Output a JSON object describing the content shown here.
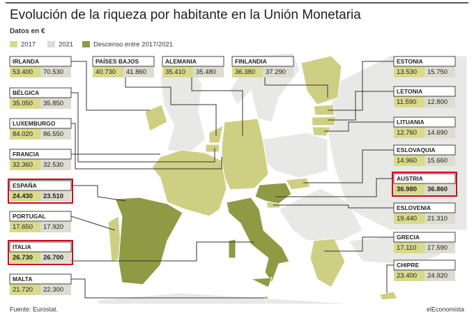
{
  "header": {
    "title": "Evolución de la riqueza por habitante en la Unión Monetaria",
    "subtitle": "Datos en €"
  },
  "legend": [
    {
      "label": "2017",
      "color": "#d9d98c"
    },
    {
      "label": "2021",
      "color": "#dcdcd0"
    },
    {
      "label": "Descenso entre 2017/2021",
      "color": "#8e9b44"
    }
  ],
  "countries": [
    {
      "name": "IRLANDA",
      "v2017": "53.400",
      "v2021": "70.530",
      "highlight": false
    },
    {
      "name": "BÉLGICA",
      "v2017": "35.050",
      "v2021": "35.850",
      "highlight": false
    },
    {
      "name": "LUXEMBURGO",
      "v2017": "84.020",
      "v2021": "86.550",
      "highlight": false
    },
    {
      "name": "FRANCIA",
      "v2017": "32.360",
      "v2021": "32.530",
      "highlight": false
    },
    {
      "name": "ESPAÑA",
      "v2017": "24.430",
      "v2021": "23.510",
      "highlight": true
    },
    {
      "name": "PORTUGAL",
      "v2017": "17.650",
      "v2021": "17.920",
      "highlight": false
    },
    {
      "name": "ITALIA",
      "v2017": "26.730",
      "v2021": "26.700",
      "highlight": true
    },
    {
      "name": "MALTA",
      "v2017": "21.720",
      "v2021": "22.300",
      "highlight": false
    },
    {
      "name": "PAÍSES BAJOS",
      "v2017": "40.730",
      "v2021": "41.860",
      "highlight": false
    },
    {
      "name": "ALEMANIA",
      "v2017": "35.410",
      "v2021": "35.480",
      "highlight": false
    },
    {
      "name": "FINLANDIA",
      "v2017": "36.380",
      "v2021": "37.290",
      "highlight": false
    },
    {
      "name": "ESTONIA",
      "v2017": "13.530",
      "v2021": "15.750",
      "highlight": false
    },
    {
      "name": "LETONIA",
      "v2017": "11.590",
      "v2021": "12.800",
      "highlight": false
    },
    {
      "name": "LITUANIA",
      "v2017": "12.760",
      "v2021": "14.690",
      "highlight": false
    },
    {
      "name": "ESLOVAQUIA",
      "v2017": "14.960",
      "v2021": "15.660",
      "highlight": false
    },
    {
      "name": "AUSTRIA",
      "v2017": "36.980",
      "v2021": "36.860",
      "highlight": true
    },
    {
      "name": "ESLOVENIA",
      "v2017": "19.440",
      "v2021": "21.310",
      "highlight": false
    },
    {
      "name": "GRECIA",
      "v2017": "17.110",
      "v2021": "17.590",
      "highlight": false
    },
    {
      "name": "CHIPRE",
      "v2017": "23.400",
      "v2021": "24.920",
      "highlight": false
    }
  ],
  "footer": {
    "source": "Fuente: Eurostat.",
    "brand": "elEconomista"
  }
}
